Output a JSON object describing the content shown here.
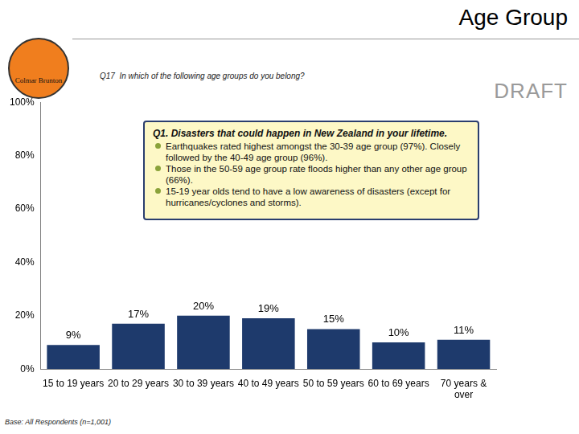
{
  "header": {
    "title": "Age Group",
    "question": "Q17  In which of the following age groups do you belong?",
    "draft": "DRAFT",
    "logo": "Colmar Brunton"
  },
  "annotation": {
    "heading": "Q1. Disasters that could happen in New Zealand in your lifetime.",
    "bullets": [
      "Earthquakes rated highest amongst the 30-39 age group (97%). Closely followed by the 40-49 age group (96%).",
      "Those in the 50-59 age group rate floods higher than any other age group (66%).",
      "15-19 year olds tend to have a low awareness of disasters (except for hurricanes/cyclones and storms)."
    ]
  },
  "footer": {
    "base": "Base: All Respondents (n=1,001)"
  },
  "chart_data": {
    "type": "bar",
    "categories": [
      "15 to 19 years",
      "20 to 29 years",
      "30 to 39 years",
      "40 to 49 years",
      "50 to 59 years",
      "60 to 69 years",
      "70 years & over"
    ],
    "values": [
      9,
      17,
      20,
      19,
      15,
      10,
      11
    ],
    "value_labels": [
      "9%",
      "17%",
      "20%",
      "19%",
      "15%",
      "10%",
      "11%"
    ],
    "color": "#1e3a6c",
    "ylim": [
      0,
      100
    ],
    "yticks": [
      {
        "value": 0,
        "label": "0%"
      },
      {
        "value": 20,
        "label": "20%"
      },
      {
        "value": 40,
        "label": "40%"
      },
      {
        "value": 60,
        "label": "60%"
      },
      {
        "value": 80,
        "label": "80%"
      },
      {
        "value": 100,
        "label": "100%"
      }
    ],
    "grid": false,
    "data_labels": true
  }
}
